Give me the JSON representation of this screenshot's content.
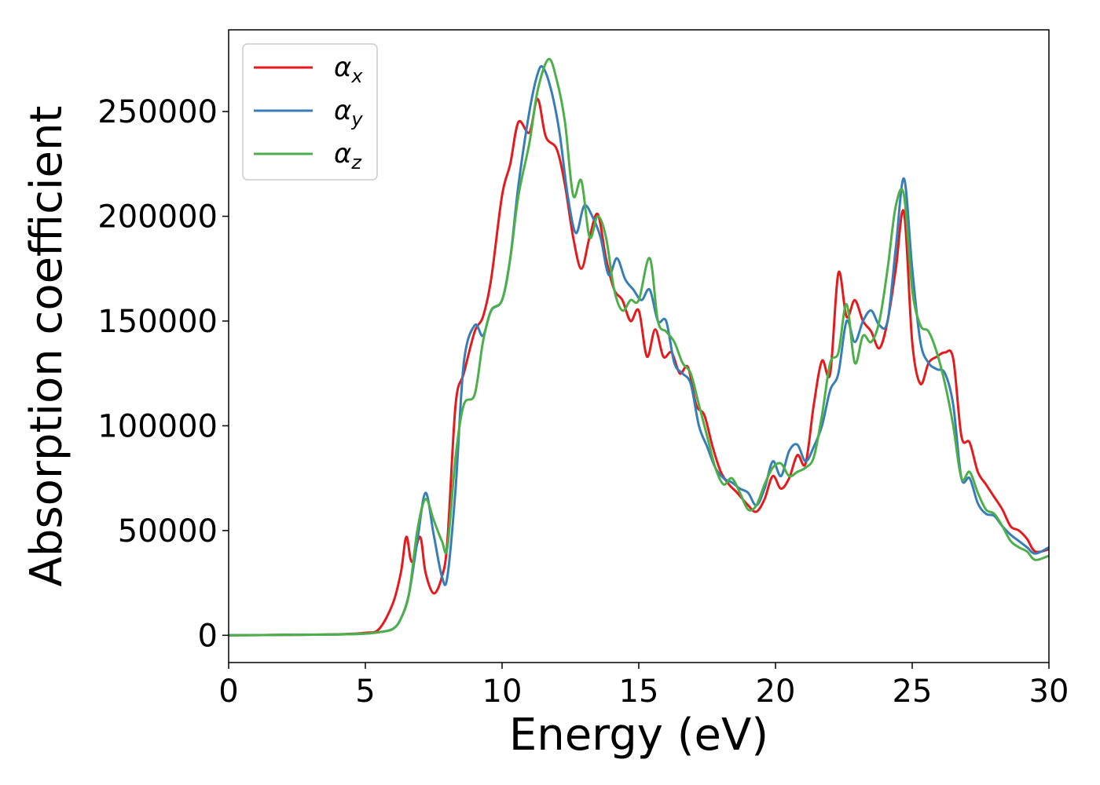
{
  "chart_data": {
    "type": "line",
    "xlabel": "Energy (eV)",
    "ylabel": "Absorption coefficient",
    "xlim": [
      0,
      30
    ],
    "ylim": [
      -13000,
      289000
    ],
    "xticks": [
      0,
      5,
      10,
      15,
      20,
      25,
      30
    ],
    "yticks": [
      0,
      50000,
      100000,
      150000,
      200000,
      250000
    ],
    "grid": false,
    "legend_position": "top-left",
    "series": [
      {
        "name": "α",
        "subscript": "x",
        "color": "#e41a1c",
        "x": [
          0,
          2,
          4,
          5,
          5.5,
          6.0,
          6.3,
          6.5,
          6.7,
          7.0,
          7.2,
          7.5,
          7.8,
          8.0,
          8.3,
          8.6,
          9.0,
          9.3,
          9.6,
          10.0,
          10.3,
          10.6,
          11.0,
          11.3,
          11.6,
          12.0,
          12.3,
          12.6,
          12.9,
          13.2,
          13.5,
          13.8,
          14.1,
          14.4,
          14.7,
          15.0,
          15.3,
          15.6,
          15.9,
          16.2,
          16.5,
          16.8,
          17.1,
          17.4,
          17.7,
          18.0,
          18.3,
          18.6,
          19.0,
          19.3,
          19.6,
          19.9,
          20.2,
          20.5,
          20.8,
          21.1,
          21.4,
          21.7,
          22.0,
          22.3,
          22.6,
          22.9,
          23.2,
          23.5,
          23.8,
          24.1,
          24.4,
          24.7,
          25.0,
          25.3,
          25.6,
          25.9,
          26.2,
          26.5,
          26.8,
          27.1,
          27.4,
          27.7,
          28.0,
          28.3,
          28.6,
          28.9,
          29.2,
          29.5,
          30.0
        ],
        "y": [
          0,
          200,
          500,
          1200,
          3000,
          15000,
          30000,
          47000,
          35000,
          47000,
          30000,
          20000,
          28000,
          45000,
          110000,
          125000,
          145000,
          152000,
          170000,
          210000,
          225000,
          245000,
          240000,
          256000,
          238000,
          232000,
          215000,
          190000,
          175000,
          190000,
          201000,
          180000,
          165000,
          160000,
          150000,
          155000,
          133000,
          146000,
          133000,
          135000,
          125000,
          128000,
          110000,
          105000,
          90000,
          78000,
          72000,
          68000,
          62000,
          59000,
          65000,
          76000,
          70000,
          75000,
          86000,
          82000,
          110000,
          131000,
          125000,
          173000,
          152000,
          160000,
          150000,
          145000,
          137000,
          150000,
          175000,
          202000,
          140000,
          120000,
          130000,
          133000,
          135000,
          132000,
          95000,
          92000,
          78000,
          72000,
          66000,
          60000,
          52000,
          50000,
          46000,
          40000,
          41000
        ]
      },
      {
        "name": "α",
        "subscript": "y",
        "color": "#377eb8",
        "x": [
          0,
          2,
          4,
          5,
          5.5,
          6.0,
          6.3,
          6.6,
          6.9,
          7.2,
          7.5,
          7.8,
          8.0,
          8.3,
          8.6,
          9.0,
          9.3,
          9.6,
          10.0,
          10.3,
          10.6,
          11.0,
          11.3,
          11.5,
          11.8,
          12.1,
          12.4,
          12.7,
          13.0,
          13.3,
          13.6,
          13.9,
          14.2,
          14.5,
          14.8,
          15.1,
          15.4,
          15.7,
          16.0,
          16.3,
          16.6,
          16.9,
          17.2,
          17.5,
          17.8,
          18.1,
          18.4,
          18.7,
          19.0,
          19.3,
          19.6,
          19.9,
          20.2,
          20.5,
          20.8,
          21.1,
          21.4,
          21.7,
          22.0,
          22.3,
          22.6,
          22.9,
          23.2,
          23.5,
          23.8,
          24.1,
          24.4,
          24.7,
          25.0,
          25.3,
          25.6,
          25.9,
          26.2,
          26.5,
          26.8,
          27.1,
          27.4,
          27.7,
          28.0,
          28.3,
          28.6,
          28.9,
          29.2,
          29.5,
          30.0
        ],
        "y": [
          0,
          200,
          400,
          800,
          1500,
          3000,
          8000,
          20000,
          45000,
          68000,
          48000,
          28000,
          28000,
          70000,
          130000,
          148000,
          143000,
          155000,
          160000,
          180000,
          215000,
          250000,
          268000,
          271000,
          260000,
          240000,
          210000,
          192000,
          205000,
          200000,
          190000,
          172000,
          180000,
          170000,
          165000,
          160000,
          165000,
          150000,
          150000,
          130000,
          125000,
          120000,
          100000,
          90000,
          80000,
          75000,
          73000,
          70000,
          68000,
          62000,
          70000,
          83000,
          76000,
          88000,
          91000,
          83000,
          90000,
          100000,
          117000,
          125000,
          150000,
          140000,
          150000,
          155000,
          148000,
          150000,
          185000,
          218000,
          175000,
          140000,
          130000,
          127000,
          125000,
          110000,
          75000,
          75000,
          63000,
          58000,
          57000,
          52000,
          48000,
          45000,
          42000,
          39000,
          42000
        ]
      },
      {
        "name": "α",
        "subscript": "z",
        "color": "#4daf4a",
        "x": [
          0,
          2,
          4,
          5,
          5.5,
          6.0,
          6.3,
          6.6,
          6.9,
          7.2,
          7.5,
          7.8,
          8.0,
          8.3,
          8.6,
          9.0,
          9.3,
          9.6,
          10.0,
          10.3,
          10.6,
          11.0,
          11.3,
          11.7,
          12.0,
          12.3,
          12.6,
          12.9,
          13.2,
          13.5,
          13.8,
          14.1,
          14.4,
          14.7,
          15.0,
          15.4,
          15.7,
          16.0,
          16.3,
          16.6,
          16.9,
          17.2,
          17.5,
          17.8,
          18.1,
          18.4,
          18.7,
          19.0,
          19.3,
          19.6,
          19.9,
          20.2,
          20.5,
          20.8,
          21.1,
          21.4,
          21.7,
          22.0,
          22.3,
          22.6,
          22.9,
          23.2,
          23.5,
          23.8,
          24.1,
          24.4,
          24.7,
          25.0,
          25.3,
          25.6,
          25.9,
          26.2,
          26.5,
          26.8,
          27.1,
          27.4,
          27.7,
          28.0,
          28.3,
          28.6,
          28.9,
          29.2,
          29.5,
          30.0
        ],
        "y": [
          0,
          200,
          400,
          800,
          1500,
          3000,
          8000,
          20000,
          50000,
          65000,
          55000,
          45000,
          42000,
          85000,
          110000,
          115000,
          140000,
          155000,
          160000,
          180000,
          210000,
          235000,
          260000,
          275000,
          265000,
          245000,
          210000,
          217000,
          190000,
          200000,
          190000,
          165000,
          155000,
          160000,
          160000,
          180000,
          150000,
          145000,
          140000,
          130000,
          125000,
          110000,
          95000,
          80000,
          72000,
          75000,
          68000,
          60000,
          62000,
          72000,
          80000,
          82000,
          76000,
          78000,
          80000,
          85000,
          105000,
          130000,
          135000,
          158000,
          130000,
          143000,
          140000,
          150000,
          175000,
          205000,
          210000,
          165000,
          148000,
          145000,
          135000,
          120000,
          100000,
          75000,
          78000,
          68000,
          60000,
          58000,
          52000,
          45000,
          42000,
          40000,
          36000,
          38000
        ]
      }
    ]
  }
}
